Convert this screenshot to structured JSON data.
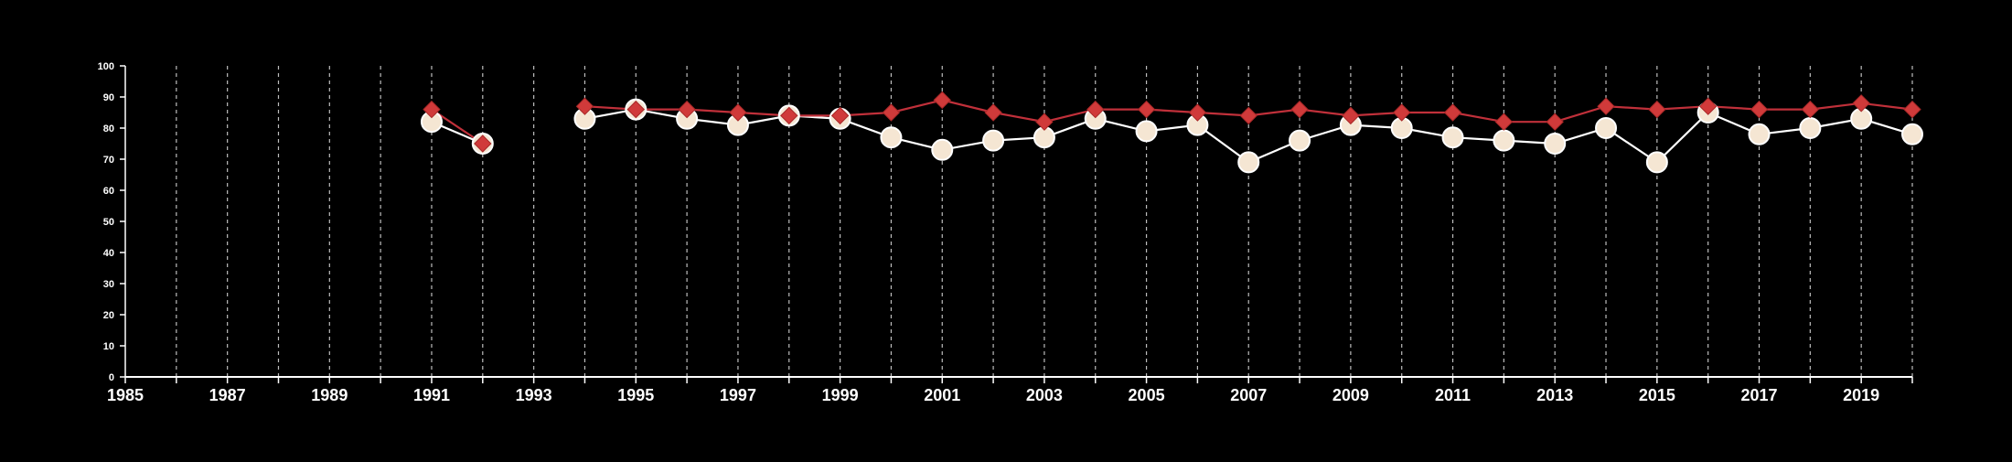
{
  "chart_data": {
    "type": "line",
    "title": "",
    "xlabel": "",
    "ylabel": "",
    "xlim": [
      1985,
      2020
    ],
    "ylim": [
      0,
      100
    ],
    "x_ticks": [
      1985,
      1987,
      1989,
      1991,
      1993,
      1995,
      1997,
      1999,
      2001,
      2003,
      2005,
      2007,
      2009,
      2011,
      2013,
      2015,
      2017,
      2019
    ],
    "y_ticks": [
      0,
      10,
      20,
      30,
      40,
      50,
      60,
      70,
      80,
      90,
      100
    ],
    "grid": "vertical-dashed-yearly",
    "x": [
      1991,
      1992,
      1994,
      1995,
      1996,
      1997,
      1998,
      1999,
      2000,
      2001,
      2002,
      2003,
      2004,
      2005,
      2006,
      2007,
      2008,
      2009,
      2010,
      2011,
      2012,
      2013,
      2014,
      2015,
      2016,
      2017,
      2018,
      2019,
      2020
    ],
    "series": [
      {
        "marker": "circle",
        "color": "#f5e6d3",
        "line_color": "#ffffff",
        "values": [
          82,
          75,
          83,
          86,
          83,
          81,
          84,
          83,
          77,
          73,
          76,
          77,
          83,
          79,
          81,
          69,
          76,
          81,
          80,
          77,
          76,
          75,
          80,
          69,
          85,
          78,
          80,
          83,
          78
        ]
      },
      {
        "marker": "diamond",
        "color": "#d03a3a",
        "line_color": "#c0303a",
        "values": [
          86,
          75,
          87,
          86,
          86,
          85,
          84,
          84,
          85,
          89,
          85,
          82,
          86,
          86,
          85,
          84,
          86,
          84,
          85,
          85,
          82,
          82,
          87,
          86,
          87,
          86,
          86,
          88,
          86
        ]
      }
    ]
  }
}
